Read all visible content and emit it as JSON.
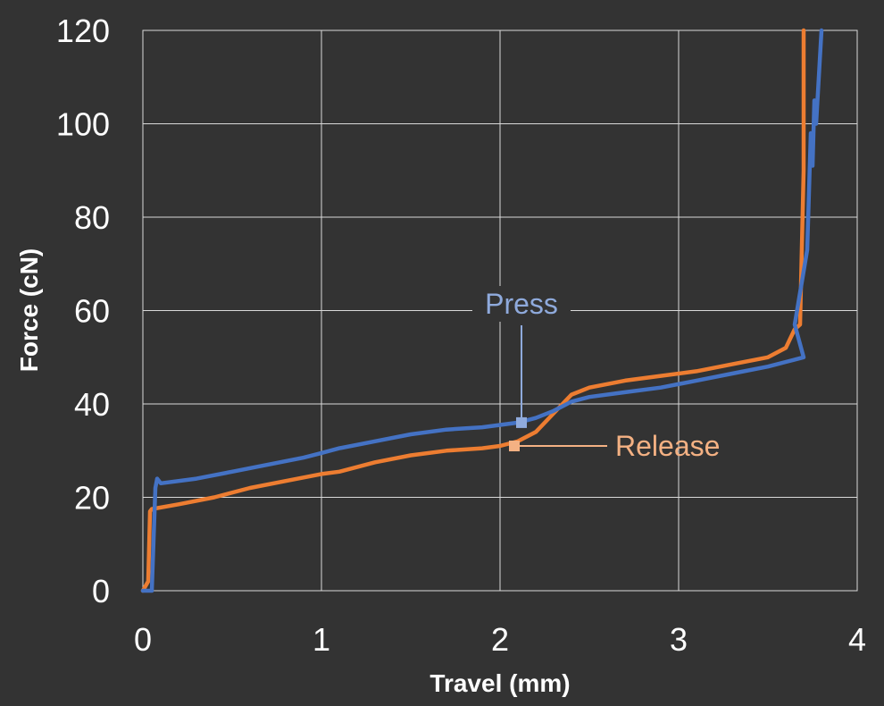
{
  "chart_data": {
    "type": "line",
    "xlabel": "Travel (mm)",
    "ylabel": "Force (cN)",
    "xlim": [
      0,
      4
    ],
    "ylim": [
      0,
      120
    ],
    "x_ticks": [
      "0",
      "1",
      "2",
      "3",
      "4"
    ],
    "y_ticks": [
      "0",
      "20",
      "40",
      "60",
      "80",
      "100",
      "120"
    ],
    "grid": true,
    "legend": "none",
    "series": [
      {
        "name": "Press",
        "color": "#4472c4",
        "label_color": "#8faadc",
        "label_at": [
          2.12,
          36
        ],
        "x": [
          0.0,
          0.05,
          0.07,
          0.08,
          0.1,
          0.3,
          0.5,
          0.7,
          0.9,
          1.0,
          1.1,
          1.3,
          1.5,
          1.7,
          1.9,
          2.0,
          2.1,
          2.2,
          2.3,
          2.4,
          2.5,
          2.7,
          2.9,
          3.1,
          3.3,
          3.5,
          3.6,
          3.7,
          3.65,
          3.72,
          3.74,
          3.75,
          3.76,
          3.77,
          3.8
        ],
        "y": [
          0,
          0,
          22,
          24,
          23,
          24,
          25.5,
          27,
          28.5,
          29.5,
          30.5,
          32,
          33.5,
          34.5,
          35,
          35.5,
          36,
          37,
          38.5,
          40.5,
          41.5,
          42.5,
          43.5,
          45,
          46.5,
          48,
          49,
          50,
          57,
          73,
          98,
          91,
          105,
          100,
          120
        ]
      },
      {
        "name": "Release",
        "color": "#ed7d31",
        "label_color": "#f4b183",
        "label_at": [
          2.08,
          31
        ],
        "x": [
          0.0,
          0.03,
          0.04,
          0.05,
          0.2,
          0.4,
          0.6,
          0.8,
          1.0,
          1.1,
          1.3,
          1.5,
          1.7,
          1.9,
          2.0,
          2.1,
          2.2,
          2.3,
          2.4,
          2.5,
          2.7,
          2.9,
          3.1,
          3.3,
          3.5,
          3.6,
          3.65,
          3.68,
          3.7,
          3.7
        ],
        "y": [
          0,
          2,
          17,
          17.5,
          18.5,
          20,
          22,
          23.5,
          25,
          25.5,
          27.5,
          29,
          30,
          30.5,
          31,
          32,
          34,
          38,
          42,
          43.5,
          45,
          46,
          47,
          48.5,
          50,
          52,
          56,
          57,
          90,
          120
        ]
      }
    ]
  }
}
